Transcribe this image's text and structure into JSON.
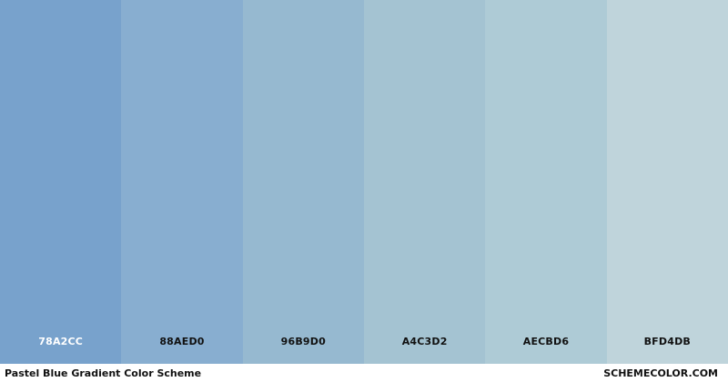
{
  "swatches": [
    {
      "hex": "78A2CC",
      "color": "#78A2CC",
      "text_color": "#ffffff"
    },
    {
      "hex": "88AED0",
      "color": "#88AED0",
      "text_color": "#111111"
    },
    {
      "hex": "96B9D0",
      "color": "#96B9D0",
      "text_color": "#111111"
    },
    {
      "hex": "A4C3D2",
      "color": "#A4C3D2",
      "text_color": "#111111"
    },
    {
      "hex": "AECBD6",
      "color": "#AECBD6",
      "text_color": "#111111"
    },
    {
      "hex": "BFD4DB",
      "color": "#BFD4DB",
      "text_color": "#111111"
    }
  ],
  "footer": {
    "title": "Pastel Blue Gradient Color Scheme",
    "site": "SCHEMECOLOR.COM"
  }
}
